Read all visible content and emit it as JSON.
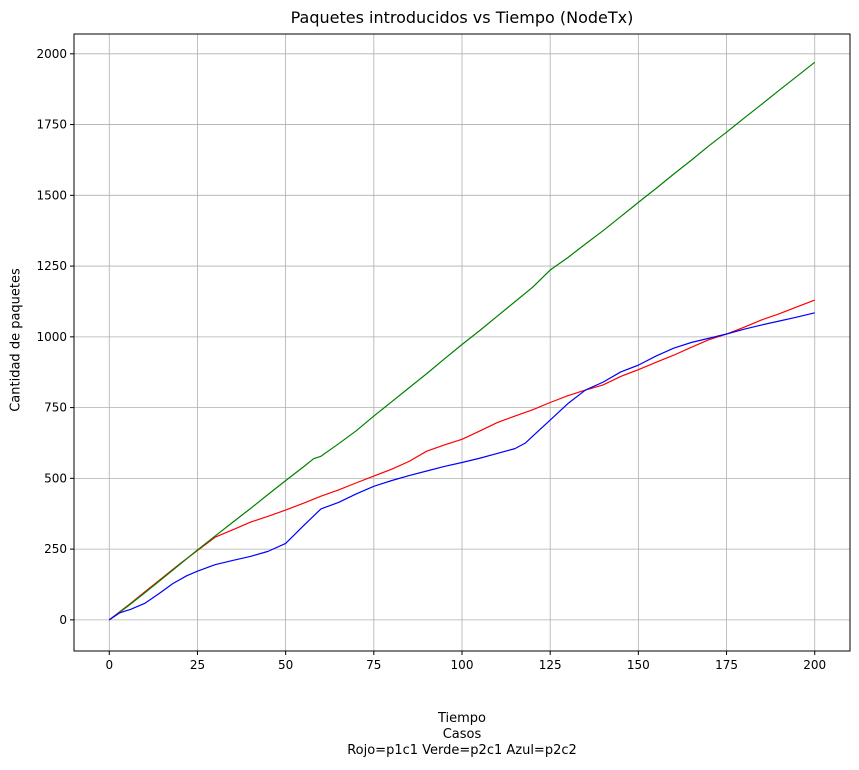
{
  "chart_data": {
    "type": "line",
    "title": "Paquetes introducidos vs Tiempo (NodeTx)",
    "xlabel": "Tiempo",
    "caption_lines": [
      "Casos",
      "Rojo=p1c1 Verde=p2c1 Azul=p2c2"
    ],
    "ylabel": "Cantidad de paquetes",
    "xlim": [
      -10,
      210
    ],
    "ylim": [
      -110,
      2070
    ],
    "xticks": [
      0,
      25,
      50,
      75,
      100,
      125,
      150,
      175,
      200
    ],
    "yticks": [
      0,
      250,
      500,
      750,
      1000,
      1250,
      1500,
      1750,
      2000
    ],
    "grid": true,
    "series": [
      {
        "color": "#ff0000",
        "x": [
          0,
          5,
          10,
          15,
          20,
          25,
          30,
          35,
          40,
          45,
          50,
          55,
          60,
          65,
          70,
          75,
          80,
          85,
          90,
          95,
          100,
          105,
          110,
          115,
          120,
          125,
          130,
          135,
          140,
          145,
          150,
          155,
          160,
          165,
          170,
          175,
          180,
          185,
          190,
          195,
          200
        ],
        "y": [
          0,
          48,
          98,
          148,
          198,
          245,
          292,
          318,
          345,
          366,
          388,
          412,
          437,
          459,
          484,
          508,
          532,
          560,
          596,
          618,
          638,
          667,
          697,
          720,
          742,
          768,
          792,
          812,
          830,
          860,
          884,
          910,
          935,
          963,
          990,
          1010,
          1034,
          1060,
          1082,
          1106,
          1130
        ]
      },
      {
        "color": "#008000",
        "x": [
          0,
          5,
          10,
          15,
          20,
          25,
          30,
          35,
          40,
          45,
          50,
          55,
          58,
          60,
          65,
          70,
          75,
          80,
          85,
          90,
          95,
          100,
          105,
          110,
          115,
          120,
          125,
          130,
          135,
          140,
          145,
          150,
          155,
          160,
          165,
          170,
          175,
          180,
          185,
          190,
          195,
          200
        ],
        "y": [
          0,
          46,
          95,
          145,
          196,
          247,
          296,
          345,
          393,
          443,
          492,
          540,
          570,
          578,
          622,
          668,
          720,
          770,
          820,
          870,
          922,
          973,
          1022,
          1073,
          1124,
          1175,
          1236,
          1280,
          1328,
          1375,
          1425,
          1475,
          1524,
          1575,
          1624,
          1675,
          1723,
          1773,
          1822,
          1872,
          1921,
          1970
        ]
      },
      {
        "color": "#0000ff",
        "x": [
          0,
          3,
          6,
          10,
          14,
          18,
          22,
          25,
          30,
          35,
          40,
          45,
          50,
          55,
          60,
          65,
          70,
          75,
          80,
          85,
          90,
          95,
          100,
          105,
          110,
          115,
          118,
          121,
          125,
          130,
          135,
          140,
          145,
          150,
          155,
          160,
          165,
          170,
          175,
          180,
          185,
          190,
          195,
          200
        ],
        "y": [
          0,
          25,
          37,
          58,
          92,
          128,
          156,
          172,
          195,
          210,
          224,
          242,
          270,
          332,
          392,
          415,
          445,
          472,
          492,
          510,
          526,
          542,
          556,
          571,
          588,
          605,
          625,
          660,
          706,
          764,
          812,
          840,
          876,
          900,
          932,
          960,
          980,
          995,
          1010,
          1027,
          1042,
          1056,
          1070,
          1085
        ]
      }
    ]
  }
}
